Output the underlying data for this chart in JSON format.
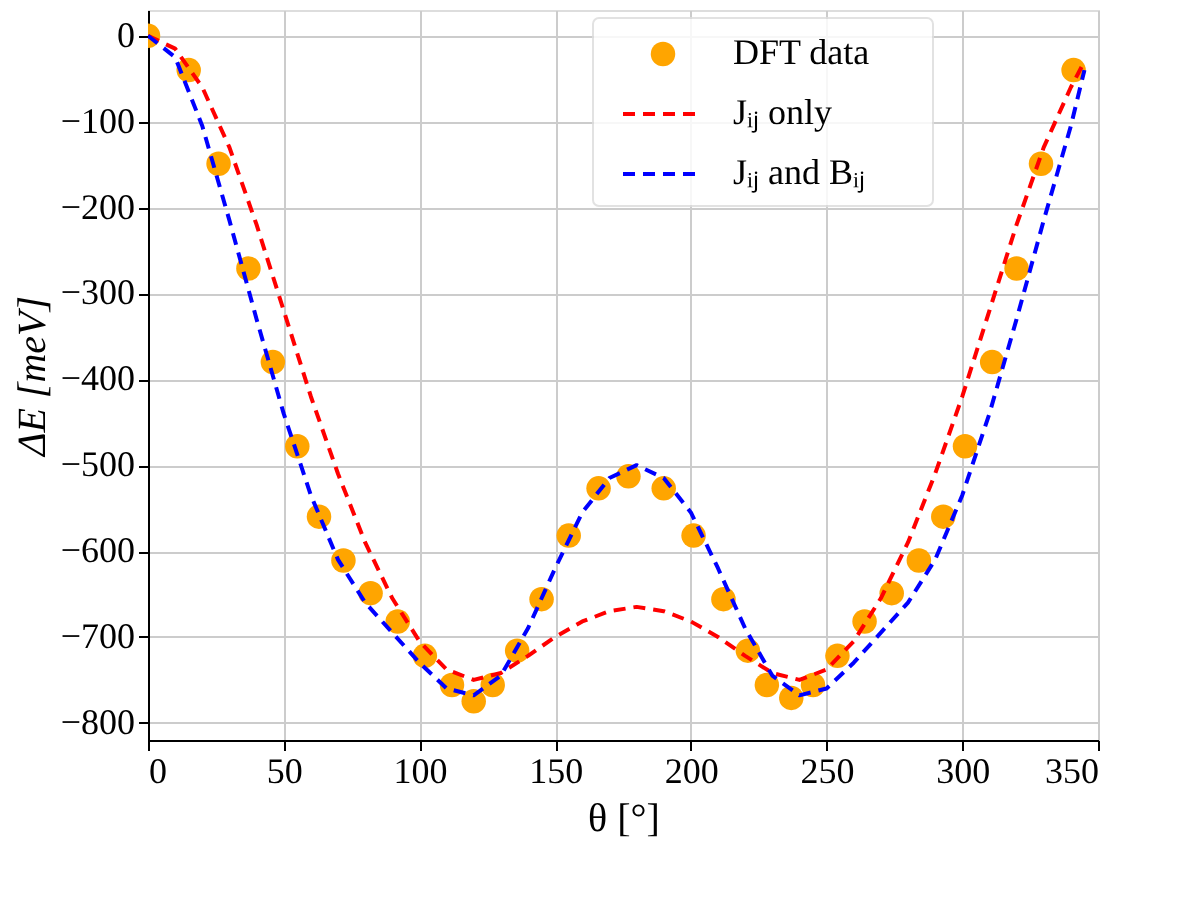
{
  "chart_data": {
    "type": "line",
    "xlabel": "θ [°]",
    "ylabel": "ΔE [meV]",
    "xlim": [
      0,
      350
    ],
    "ylim": [
      -820,
      30
    ],
    "xticks": [
      0,
      50,
      100,
      150,
      200,
      250,
      300,
      350
    ],
    "yticks": [
      -800,
      -700,
      -600,
      -500,
      -400,
      -300,
      -200,
      -100,
      0
    ],
    "grid": true,
    "legend": "top",
    "series": [
      {
        "name": "DFT data",
        "type": "scatter",
        "marker": "circle",
        "color": "#ffa500",
        "x": [
          0,
          15,
          26,
          37,
          46,
          55,
          63,
          72,
          82,
          92,
          102,
          112,
          120,
          127,
          136,
          145,
          155,
          166,
          177,
          190,
          201,
          212,
          221,
          228,
          237,
          245,
          254,
          264,
          274,
          284,
          293,
          301,
          311,
          320,
          329,
          341
        ],
        "values": [
          0,
          -40,
          -149,
          -271,
          -380,
          -478,
          -560,
          -611,
          -649,
          -682,
          -722,
          -756,
          -775,
          -756,
          -716,
          -656,
          -582,
          -527,
          -513,
          -527,
          -582,
          -656,
          -716,
          -756,
          -771,
          -756,
          -722,
          -682,
          -649,
          -611,
          -560,
          -478,
          -380,
          -271,
          -149,
          -40
        ]
      },
      {
        "name": "Jᵢⱼ only",
        "line_style": "dashed",
        "color": "#ff0000",
        "x": [
          0,
          10,
          20,
          30,
          40,
          50,
          60,
          70,
          80,
          90,
          100,
          110,
          120,
          130,
          140,
          150,
          160,
          170,
          180,
          190,
          200,
          210,
          220,
          230,
          240,
          250,
          260,
          270,
          280,
          290,
          300,
          310,
          320,
          330,
          340,
          345
        ],
        "values": [
          0,
          -15,
          -60,
          -130,
          -220,
          -320,
          -420,
          -510,
          -590,
          -655,
          -705,
          -738,
          -750,
          -742,
          -722,
          -700,
          -682,
          -670,
          -665,
          -670,
          -682,
          -700,
          -722,
          -742,
          -750,
          -738,
          -705,
          -655,
          -590,
          -510,
          -420,
          -320,
          -220,
          -130,
          -60,
          -30
        ]
      },
      {
        "name": "Jᵢⱼ and Bᵢⱼ",
        "line_style": "dashed",
        "color": "#0000ff",
        "x": [
          0,
          10,
          20,
          30,
          40,
          50,
          60,
          70,
          80,
          90,
          100,
          110,
          120,
          130,
          140,
          150,
          160,
          170,
          180,
          190,
          200,
          210,
          220,
          230,
          240,
          250,
          260,
          270,
          280,
          290,
          300,
          310,
          320,
          330,
          340,
          345
        ],
        "values": [
          0,
          -25,
          -105,
          -215,
          -330,
          -440,
          -535,
          -610,
          -660,
          -695,
          -730,
          -760,
          -768,
          -745,
          -690,
          -620,
          -555,
          -515,
          -500,
          -515,
          -555,
          -620,
          -690,
          -745,
          -768,
          -760,
          -730,
          -695,
          -660,
          -610,
          -535,
          -440,
          -330,
          -215,
          -105,
          -40
        ]
      }
    ]
  }
}
